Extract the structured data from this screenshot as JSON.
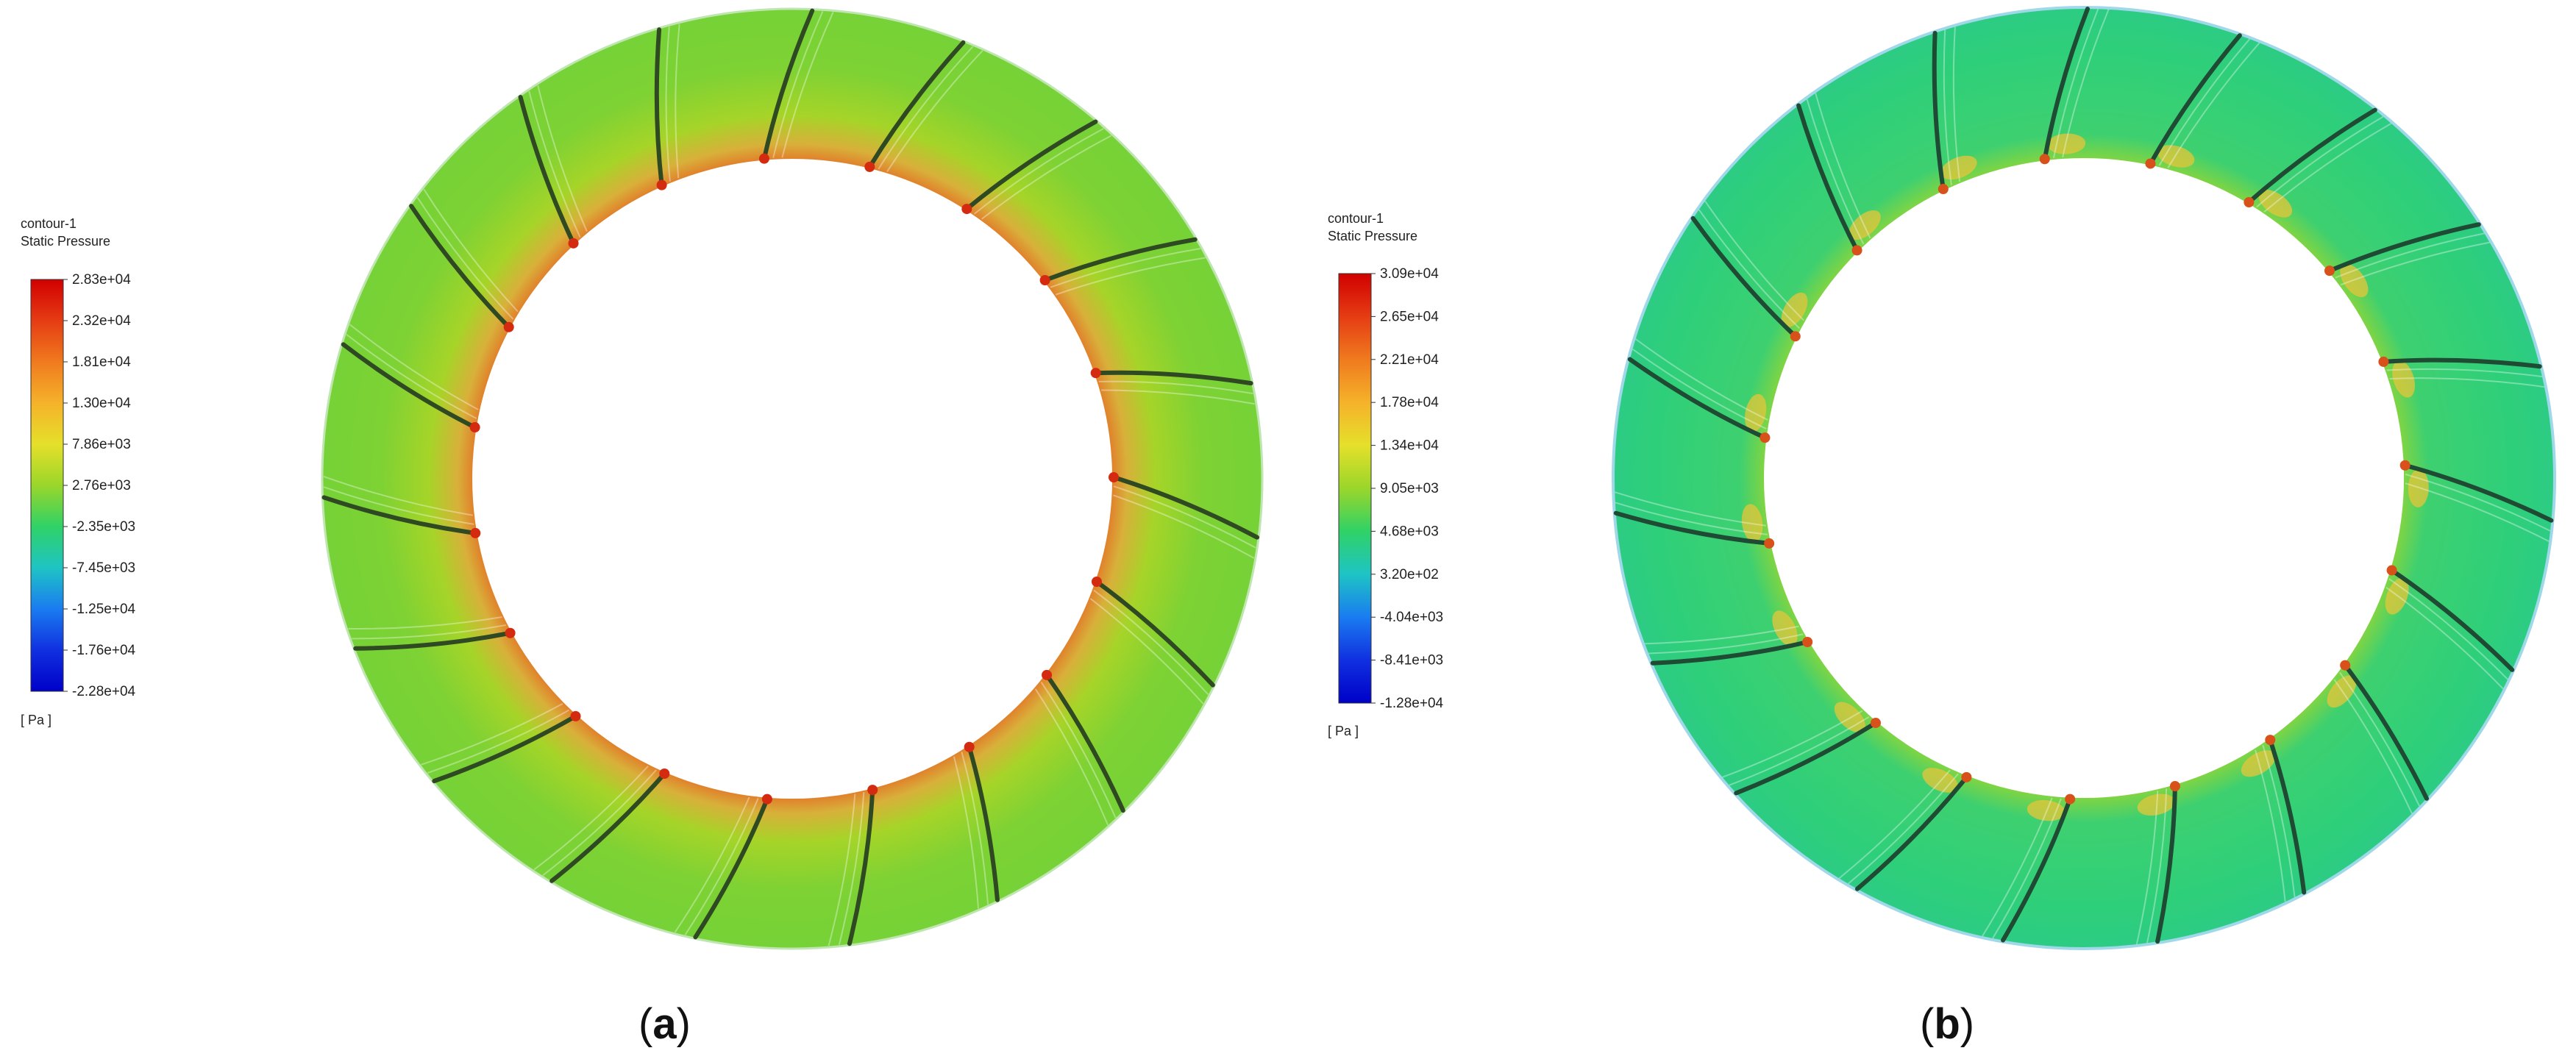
{
  "panels": [
    {
      "caption": "(a)",
      "caption_letter": "a",
      "legend": {
        "title": "contour-1",
        "variable": "Static Pressure",
        "unit": "[ Pa ]",
        "ticks": [
          "2.83e+04",
          "2.32e+04",
          "1.81e+04",
          "1.30e+04",
          "7.86e+03",
          "2.76e+03",
          "-2.35e+03",
          "-7.45e+03",
          "-1.25e+04",
          "-1.76e+04",
          "-2.28e+04"
        ]
      },
      "colors": {
        "base": "#76d236",
        "inner_edge": "#e8561e",
        "mid": "#a6d428",
        "blade": "#2f4a22"
      },
      "blade_count": 19
    },
    {
      "caption": "(b)",
      "caption_letter": "b",
      "legend": {
        "title": "contour-1",
        "variable": "Static Pressure",
        "unit": "[ Pa ]",
        "ticks": [
          "3.09e+04",
          "2.65e+04",
          "2.21e+04",
          "1.78e+04",
          "1.34e+04",
          "9.05e+03",
          "4.68e+03",
          "3.20e+02",
          "-4.04e+03",
          "-8.41e+03",
          "-1.28e+04"
        ]
      },
      "colors": {
        "base": "#2fcf78",
        "inner_edge": "#e8561e",
        "mid": "#6ed64a",
        "blade": "#1f4a34"
      },
      "blade_count": 19
    }
  ],
  "colorbar_colors": [
    "#d10000",
    "#e53c14",
    "#f07a1e",
    "#f5b22a",
    "#e5e02a",
    "#9ad62a",
    "#2fd266",
    "#1ec4c4",
    "#1a7cf0",
    "#1030e0",
    "#0000c8"
  ]
}
